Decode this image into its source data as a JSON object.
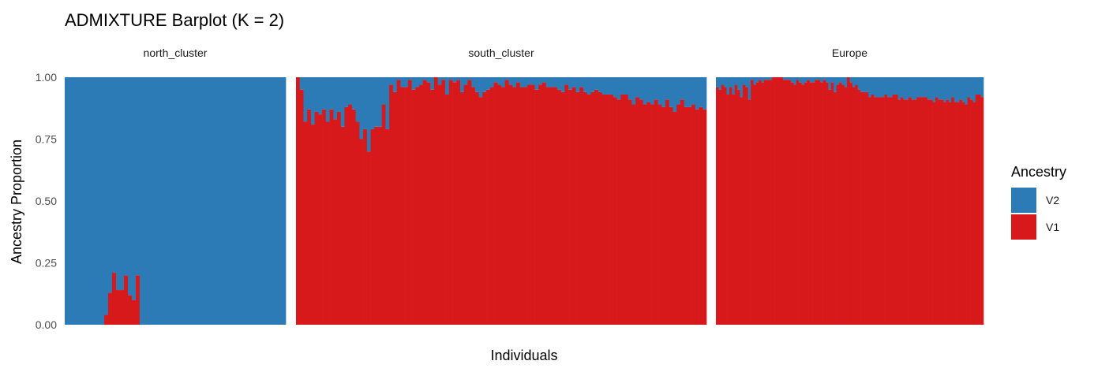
{
  "chart_data": {
    "type": "bar",
    "stacked": true,
    "title": "ADMIXTURE Barplot (K = 2)",
    "xlabel": "Individuals",
    "ylabel": "Ancestry Proportion",
    "ylim": [
      0,
      1
    ],
    "yticks": [
      "0.00",
      "0.25",
      "0.50",
      "0.75",
      "1.00"
    ],
    "ytick_values": [
      0,
      0.25,
      0.5,
      0.75,
      1.0
    ],
    "grid": false,
    "legend": {
      "title": "Ancestry",
      "position": "right",
      "entries": [
        {
          "name": "V2",
          "color": "#2C7BB6"
        },
        {
          "name": "V1",
          "color": "#D7191C"
        }
      ]
    },
    "colors": {
      "V1": "#D7191C",
      "V2": "#2C7BB6"
    },
    "panels": [
      {
        "name": "north_cluster",
        "series": [
          {
            "name": "V1",
            "values": [
              0,
              0,
              0,
              0,
              0,
              0,
              0,
              0,
              0,
              0,
              0.04,
              0.13,
              0.21,
              0.14,
              0.14,
              0.2,
              0.12,
              0.1,
              0.2,
              0,
              0,
              0,
              0,
              0,
              0,
              0,
              0,
              0,
              0,
              0,
              0,
              0,
              0,
              0,
              0,
              0,
              0,
              0,
              0,
              0,
              0,
              0,
              0,
              0,
              0,
              0,
              0,
              0,
              0,
              0,
              0,
              0,
              0,
              0,
              0,
              0
            ]
          },
          {
            "name": "V2",
            "values": [
              1,
              1,
              1,
              1,
              1,
              1,
              1,
              1,
              1,
              1,
              0.96,
              0.87,
              0.79,
              0.86,
              0.86,
              0.8,
              0.88,
              0.9,
              0.8,
              1,
              1,
              1,
              1,
              1,
              1,
              1,
              1,
              1,
              1,
              1,
              1,
              1,
              1,
              1,
              1,
              1,
              1,
              1,
              1,
              1,
              1,
              1,
              1,
              1,
              1,
              1,
              1,
              1,
              1,
              1,
              1,
              1,
              1,
              1,
              1,
              1
            ]
          }
        ]
      },
      {
        "name": "south_cluster",
        "series": [
          {
            "name": "V1",
            "values": [
              1.0,
              0.95,
              0.82,
              0.87,
              0.81,
              0.86,
              0.85,
              0.87,
              0.82,
              0.87,
              0.83,
              0.86,
              0.8,
              0.88,
              0.89,
              0.87,
              0.82,
              0.75,
              0.79,
              0.7,
              0.79,
              0.8,
              0.8,
              0.89,
              0.79,
              0.97,
              0.94,
              0.99,
              0.96,
              0.96,
              0.99,
              0.95,
              0.96,
              0.97,
              0.99,
              0.98,
              0.95,
              1.0,
              0.97,
              0.99,
              0.93,
              0.99,
              0.98,
              0.99,
              0.94,
              0.97,
              0.99,
              0.96,
              0.94,
              0.92,
              0.94,
              0.95,
              0.96,
              0.98,
              0.97,
              0.96,
              0.99,
              0.97,
              0.96,
              0.98,
              0.96,
              0.96,
              0.97,
              0.97,
              0.95,
              0.97,
              0.98,
              0.96,
              0.96,
              0.96,
              0.95,
              0.94,
              0.97,
              0.95,
              0.96,
              0.94,
              0.96,
              0.94,
              0.93,
              0.94,
              0.95,
              0.94,
              0.93,
              0.93,
              0.93,
              0.92,
              0.91,
              0.93,
              0.93,
              0.91,
              0.89,
              0.92,
              0.91,
              0.89,
              0.9,
              0.89,
              0.91,
              0.89,
              0.88,
              0.91,
              0.88,
              0.86,
              0.89,
              0.91,
              0.88,
              0.88,
              0.89,
              0.87,
              0.88,
              0.87
            ]
          },
          {
            "name": "V2",
            "values": [
              0.0,
              0.05,
              0.18,
              0.13,
              0.19,
              0.14,
              0.15,
              0.13,
              0.18,
              0.13,
              0.17,
              0.14,
              0.2,
              0.12,
              0.11,
              0.13,
              0.18,
              0.25,
              0.21,
              0.3,
              0.21,
              0.2,
              0.2,
              0.11,
              0.21,
              0.03,
              0.06,
              0.01,
              0.04,
              0.04,
              0.01,
              0.05,
              0.04,
              0.03,
              0.01,
              0.02,
              0.05,
              0.0,
              0.03,
              0.01,
              0.07,
              0.01,
              0.02,
              0.01,
              0.06,
              0.03,
              0.01,
              0.04,
              0.06,
              0.08,
              0.06,
              0.05,
              0.04,
              0.02,
              0.03,
              0.04,
              0.01,
              0.03,
              0.04,
              0.02,
              0.04,
              0.04,
              0.03,
              0.03,
              0.05,
              0.03,
              0.02,
              0.04,
              0.04,
              0.04,
              0.05,
              0.06,
              0.03,
              0.05,
              0.04,
              0.06,
              0.04,
              0.06,
              0.07,
              0.06,
              0.05,
              0.06,
              0.07,
              0.07,
              0.07,
              0.08,
              0.09,
              0.07,
              0.07,
              0.09,
              0.11,
              0.08,
              0.09,
              0.11,
              0.1,
              0.11,
              0.09,
              0.11,
              0.12,
              0.09,
              0.12,
              0.14,
              0.11,
              0.09,
              0.12,
              0.12,
              0.11,
              0.13,
              0.12,
              0.13
            ]
          }
        ]
      },
      {
        "name": "Europe",
        "series": [
          {
            "name": "V1",
            "values": [
              0.96,
              0.95,
              0.97,
              0.96,
              0.93,
              0.96,
              0.93,
              0.97,
              0.95,
              0.92,
              0.97,
              0.96,
              0.91,
              0.99,
              0.97,
              0.98,
              0.99,
              0.98,
              0.99,
              0.99,
              0.99,
              1.0,
              1.0,
              1.0,
              1.0,
              0.99,
              0.99,
              0.99,
              0.98,
              0.97,
              0.99,
              0.98,
              0.97,
              0.98,
              0.99,
              0.98,
              0.98,
              0.99,
              0.99,
              0.98,
              0.99,
              0.98,
              0.95,
              0.98,
              0.94,
              0.97,
              0.98,
              0.97,
              0.96,
              1.0,
              0.98,
              0.96,
              0.97,
              0.95,
              0.94,
              0.94,
              0.94,
              0.92,
              0.93,
              0.92,
              0.92,
              0.92,
              0.92,
              0.93,
              0.92,
              0.92,
              0.93,
              0.93,
              0.91,
              0.92,
              0.91,
              0.91,
              0.92,
              0.91,
              0.91,
              0.92,
              0.92,
              0.92,
              0.92,
              0.91,
              0.91,
              0.9,
              0.92,
              0.91,
              0.91,
              0.9,
              0.91,
              0.9,
              0.92,
              0.9,
              0.9,
              0.91,
              0.9,
              0.89,
              0.92,
              0.91,
              0.9,
              0.93,
              0.93,
              0.92
            ]
          },
          {
            "name": "V2",
            "values": [
              0.04,
              0.05,
              0.03,
              0.04,
              0.07,
              0.04,
              0.07,
              0.03,
              0.05,
              0.08,
              0.03,
              0.04,
              0.09,
              0.01,
              0.03,
              0.02,
              0.01,
              0.02,
              0.01,
              0.01,
              0.01,
              0.0,
              0.0,
              0.0,
              0.0,
              0.01,
              0.01,
              0.01,
              0.02,
              0.03,
              0.01,
              0.02,
              0.03,
              0.02,
              0.01,
              0.02,
              0.02,
              0.01,
              0.01,
              0.02,
              0.01,
              0.02,
              0.05,
              0.02,
              0.06,
              0.03,
              0.02,
              0.03,
              0.04,
              0.0,
              0.02,
              0.04,
              0.03,
              0.05,
              0.06,
              0.06,
              0.06,
              0.08,
              0.07,
              0.08,
              0.08,
              0.08,
              0.08,
              0.07,
              0.08,
              0.08,
              0.07,
              0.07,
              0.09,
              0.08,
              0.09,
              0.09,
              0.08,
              0.09,
              0.09,
              0.08,
              0.08,
              0.08,
              0.08,
              0.09,
              0.09,
              0.1,
              0.08,
              0.09,
              0.09,
              0.1,
              0.09,
              0.1,
              0.08,
              0.1,
              0.1,
              0.09,
              0.1,
              0.11,
              0.08,
              0.09,
              0.1,
              0.07,
              0.07,
              0.08
            ]
          }
        ]
      }
    ]
  }
}
